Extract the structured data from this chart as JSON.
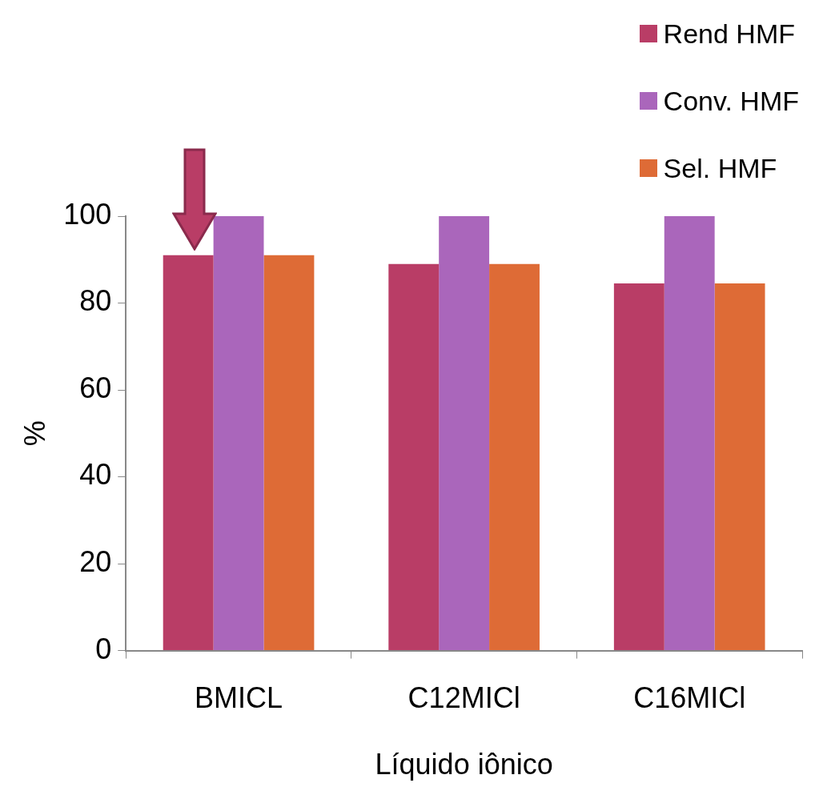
{
  "chart_data": {
    "type": "bar",
    "xlabel": "Líquido iônico",
    "ylabel": "%",
    "categories": [
      "BMICL",
      "C12MICl",
      "C16MICl"
    ],
    "series": [
      {
        "name": "Rend HMF",
        "color": "#b93d66",
        "values": [
          91,
          89,
          84.5
        ]
      },
      {
        "name": "Conv. HMF",
        "color": "#aa66bb",
        "values": [
          100,
          100,
          100
        ]
      },
      {
        "name": "Sel. HMF",
        "color": "#de6b36",
        "values": [
          91,
          89,
          84.5
        ]
      }
    ],
    "ylim": [
      0,
      100
    ],
    "yticks": [
      0,
      20,
      40,
      60,
      80,
      100
    ],
    "grid": false,
    "legend": "top right"
  }
}
